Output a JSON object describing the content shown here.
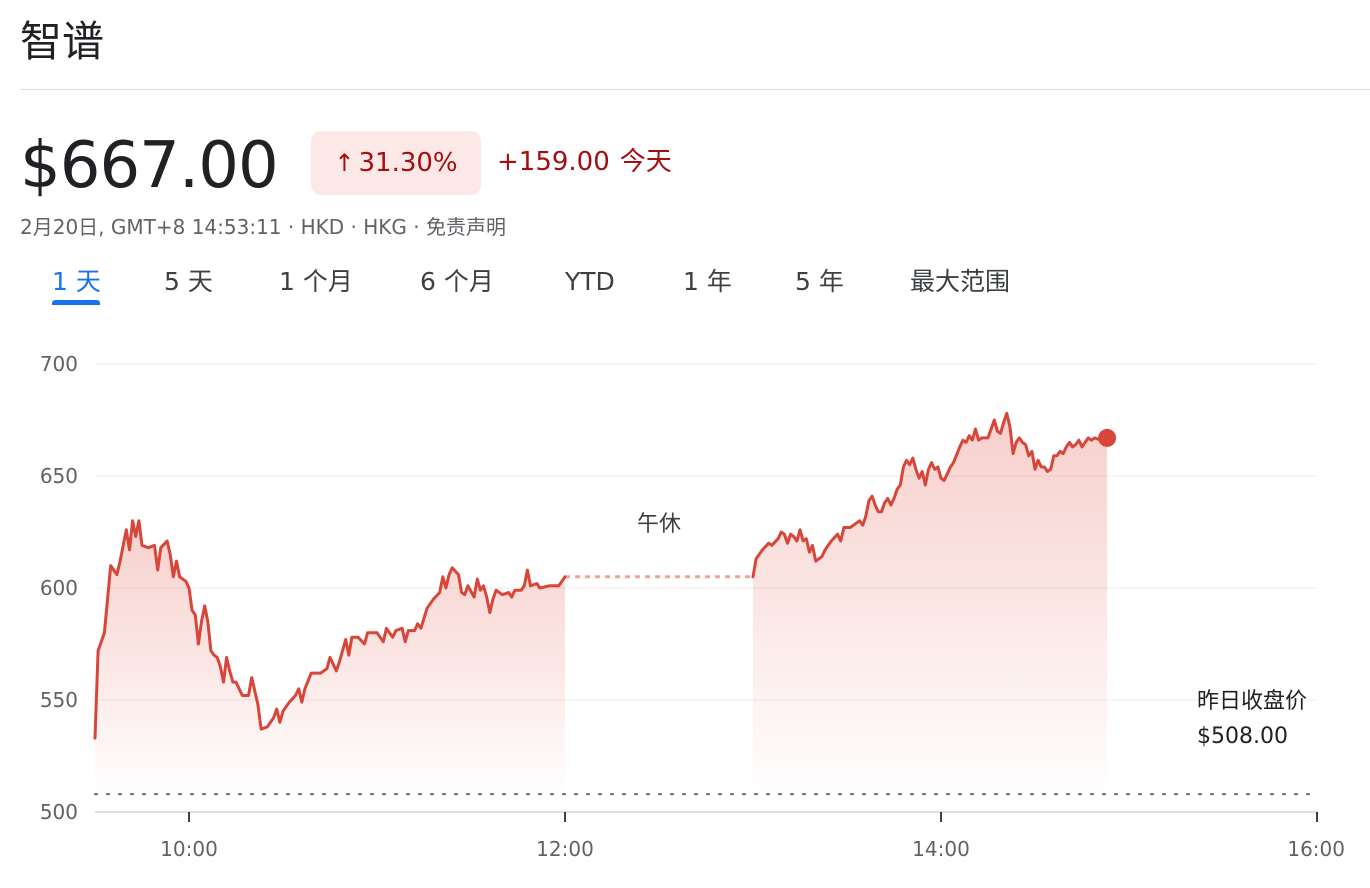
{
  "header": {
    "name": "智谱"
  },
  "quote": {
    "price": "$667.00",
    "change_pct": "31.30%",
    "change_arrow": "↑",
    "change_abs": "+159.00",
    "change_period": "今天",
    "meta": "2月20日, GMT+8 14:53:11 · HKD · HKG · 免责声明"
  },
  "tabs": [
    {
      "label": "1 天",
      "active": true
    },
    {
      "label": "5 天",
      "active": false
    },
    {
      "label": "1 个月",
      "active": false
    },
    {
      "label": "6 个月",
      "active": false
    },
    {
      "label": "YTD",
      "active": false
    },
    {
      "label": "1 年",
      "active": false
    },
    {
      "label": "5 年",
      "active": false
    },
    {
      "label": "最大范围",
      "active": false
    }
  ],
  "colors": {
    "line": "#d8463a",
    "badge_bg": "#fce8e6",
    "change_text": "#a50e0e",
    "active_tab": "#1a73e8"
  },
  "chart_data": {
    "type": "area",
    "ylim": [
      500,
      700
    ],
    "xlim": [
      "09:30",
      "16:00"
    ],
    "yticks": [
      "700",
      "650",
      "600",
      "550",
      "500"
    ],
    "xticks": [
      "10:00",
      "12:00",
      "14:00",
      "16:00"
    ],
    "grid": true,
    "lunch_break_label": "午休",
    "previous_close_label": "昨日收盘价",
    "previous_close_value": "$508.00",
    "previous_close": 508,
    "last_point": {
      "x": "14:53",
      "y": 667
    },
    "series": [
      {
        "session": "morning",
        "points": [
          [
            "09:30",
            533
          ],
          [
            "09:31",
            572
          ],
          [
            "09:33",
            580
          ],
          [
            "09:35",
            610
          ],
          [
            "09:37",
            606
          ],
          [
            "09:38",
            612
          ],
          [
            "09:40",
            626
          ],
          [
            "09:41",
            617
          ],
          [
            "09:42",
            630
          ],
          [
            "09:43",
            623
          ],
          [
            "09:44",
            630
          ],
          [
            "09:45",
            619
          ],
          [
            "09:47",
            618
          ],
          [
            "09:49",
            619
          ],
          [
            "09:50",
            608
          ],
          [
            "09:51",
            618
          ],
          [
            "09:53",
            621
          ],
          [
            "09:54",
            615
          ],
          [
            "09:55",
            605
          ],
          [
            "09:56",
            612
          ],
          [
            "09:57",
            605
          ],
          [
            "09:59",
            603
          ],
          [
            "10:00",
            600
          ],
          [
            "10:01",
            590
          ],
          [
            "10:02",
            588
          ],
          [
            "10:03",
            575
          ],
          [
            "10:04",
            585
          ],
          [
            "10:05",
            592
          ],
          [
            "10:06",
            585
          ],
          [
            "10:07",
            572
          ],
          [
            "10:08",
            570
          ],
          [
            "10:09",
            569
          ],
          [
            "10:10",
            565
          ],
          [
            "10:11",
            558
          ],
          [
            "10:12",
            569
          ],
          [
            "10:13",
            563
          ],
          [
            "10:14",
            558
          ],
          [
            "10:15",
            558
          ],
          [
            "10:17",
            552
          ],
          [
            "10:19",
            552
          ],
          [
            "10:20",
            560
          ],
          [
            "10:21",
            554
          ],
          [
            "10:22",
            548
          ],
          [
            "10:23",
            537
          ],
          [
            "10:25",
            538
          ],
          [
            "10:27",
            542
          ],
          [
            "10:28",
            546
          ],
          [
            "10:29",
            540
          ],
          [
            "10:30",
            545
          ],
          [
            "10:32",
            549
          ],
          [
            "10:34",
            552
          ],
          [
            "10:35",
            555
          ],
          [
            "10:36",
            549
          ],
          [
            "10:37",
            555
          ],
          [
            "10:39",
            562
          ],
          [
            "10:42",
            562
          ],
          [
            "10:44",
            564
          ],
          [
            "10:45",
            569
          ],
          [
            "10:47",
            563
          ],
          [
            "10:48",
            567
          ],
          [
            "10:50",
            577
          ],
          [
            "10:51",
            570
          ],
          [
            "10:52",
            578
          ],
          [
            "10:54",
            578
          ],
          [
            "10:56",
            575
          ],
          [
            "10:57",
            580
          ],
          [
            "11:00",
            580
          ],
          [
            "11:02",
            576
          ],
          [
            "11:03",
            582
          ],
          [
            "11:05",
            578
          ],
          [
            "11:06",
            581
          ],
          [
            "11:08",
            582
          ],
          [
            "11:09",
            576
          ],
          [
            "11:10",
            581
          ],
          [
            "11:12",
            581
          ],
          [
            "11:13",
            584
          ],
          [
            "11:14",
            582
          ],
          [
            "11:16",
            591
          ],
          [
            "11:18",
            595
          ],
          [
            "11:20",
            598
          ],
          [
            "11:21",
            605
          ],
          [
            "11:22",
            600
          ],
          [
            "11:23",
            606
          ],
          [
            "11:24",
            609
          ],
          [
            "11:26",
            606
          ],
          [
            "11:27",
            598
          ],
          [
            "11:28",
            597
          ],
          [
            "11:29",
            601
          ],
          [
            "11:31",
            596
          ],
          [
            "11:32",
            604
          ],
          [
            "11:33",
            599
          ],
          [
            "11:34",
            601
          ],
          [
            "11:35",
            596
          ],
          [
            "11:36",
            589
          ],
          [
            "11:37",
            595
          ],
          [
            "11:38",
            599
          ],
          [
            "11:40",
            597
          ],
          [
            "11:42",
            598
          ],
          [
            "11:43",
            596
          ],
          [
            "11:44",
            599
          ],
          [
            "11:46",
            599
          ],
          [
            "11:47",
            601
          ],
          [
            "11:48",
            608
          ],
          [
            "11:49",
            601
          ],
          [
            "11:51",
            602
          ],
          [
            "11:52",
            600
          ],
          [
            "11:55",
            601
          ],
          [
            "11:58",
            601
          ],
          [
            "12:00",
            605
          ]
        ]
      },
      {
        "session": "afternoon",
        "points": [
          [
            "13:00",
            605
          ],
          [
            "13:01",
            613
          ],
          [
            "13:03",
            617
          ],
          [
            "13:05",
            620
          ],
          [
            "13:06",
            619
          ],
          [
            "13:08",
            622
          ],
          [
            "13:09",
            625
          ],
          [
            "13:10",
            624
          ],
          [
            "13:11",
            620
          ],
          [
            "13:12",
            624
          ],
          [
            "13:13",
            623
          ],
          [
            "13:14",
            621
          ],
          [
            "13:15",
            626
          ],
          [
            "13:16",
            621
          ],
          [
            "13:17",
            622
          ],
          [
            "13:18",
            616
          ],
          [
            "13:19",
            619
          ],
          [
            "13:20",
            612
          ],
          [
            "13:22",
            614
          ],
          [
            "13:23",
            617
          ],
          [
            "13:24",
            619
          ],
          [
            "13:25",
            621
          ],
          [
            "13:27",
            624
          ],
          [
            "13:28",
            621
          ],
          [
            "13:29",
            627
          ],
          [
            "13:31",
            627
          ],
          [
            "13:32",
            628
          ],
          [
            "13:34",
            630
          ],
          [
            "13:35",
            628
          ],
          [
            "13:36",
            632
          ],
          [
            "13:37",
            639
          ],
          [
            "13:38",
            641
          ],
          [
            "13:39",
            637
          ],
          [
            "13:40",
            634
          ],
          [
            "13:41",
            634
          ],
          [
            "13:42",
            638
          ],
          [
            "13:43",
            640
          ],
          [
            "13:44",
            637
          ],
          [
            "13:45",
            640
          ],
          [
            "13:46",
            644
          ],
          [
            "13:47",
            646
          ],
          [
            "13:48",
            654
          ],
          [
            "13:49",
            657
          ],
          [
            "13:50",
            655
          ],
          [
            "13:51",
            658
          ],
          [
            "13:52",
            653
          ],
          [
            "13:53",
            649
          ],
          [
            "13:54",
            652
          ],
          [
            "13:55",
            646
          ],
          [
            "13:56",
            653
          ],
          [
            "13:57",
            656
          ],
          [
            "13:58",
            653
          ],
          [
            "13:59",
            654
          ],
          [
            "14:00",
            649
          ],
          [
            "14:01",
            648
          ],
          [
            "14:02",
            651
          ],
          [
            "14:03",
            654
          ],
          [
            "14:04",
            656
          ],
          [
            "14:06",
            663
          ],
          [
            "14:07",
            666
          ],
          [
            "14:08",
            665
          ],
          [
            "14:09",
            668
          ],
          [
            "14:10",
            666
          ],
          [
            "14:11",
            671
          ],
          [
            "14:12",
            666
          ],
          [
            "14:13",
            667
          ],
          [
            "14:15",
            667
          ],
          [
            "14:16",
            671
          ],
          [
            "14:17",
            675
          ],
          [
            "14:18",
            670
          ],
          [
            "14:19",
            669
          ],
          [
            "14:20",
            674
          ],
          [
            "14:21",
            678
          ],
          [
            "14:22",
            672
          ],
          [
            "14:23",
            660
          ],
          [
            "14:24",
            665
          ],
          [
            "14:25",
            667
          ],
          [
            "14:26",
            665
          ],
          [
            "14:27",
            664
          ],
          [
            "14:28",
            659
          ],
          [
            "14:29",
            661
          ],
          [
            "14:30",
            653
          ],
          [
            "14:31",
            657
          ],
          [
            "14:32",
            654
          ],
          [
            "14:33",
            654
          ],
          [
            "14:34",
            652
          ],
          [
            "14:35",
            653
          ],
          [
            "14:36",
            659
          ],
          [
            "14:37",
            659
          ],
          [
            "14:38",
            661
          ],
          [
            "14:39",
            660
          ],
          [
            "14:40",
            663
          ],
          [
            "14:41",
            665
          ],
          [
            "14:42",
            663
          ],
          [
            "14:43",
            664
          ],
          [
            "14:44",
            666
          ],
          [
            "14:45",
            663
          ],
          [
            "14:46",
            665
          ],
          [
            "14:47",
            667
          ],
          [
            "14:48",
            666
          ],
          [
            "14:49",
            667
          ],
          [
            "14:51",
            666
          ],
          [
            "14:53",
            667
          ]
        ]
      }
    ]
  }
}
